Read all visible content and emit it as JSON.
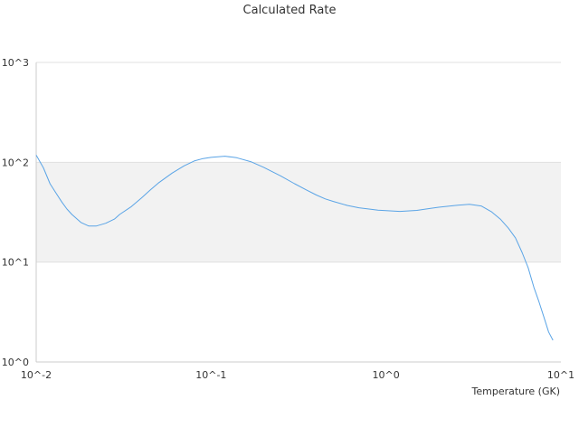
{
  "chart_data": {
    "type": "line",
    "title": "Calculated Rate",
    "xlabel": "Temperature (GK)",
    "ylabel": "",
    "xscale": "log",
    "yscale": "log",
    "xlim": [
      0.01,
      10
    ],
    "ylim": [
      1,
      1000
    ],
    "x_ticks": [
      {
        "value": 0.01,
        "label": "10^-2"
      },
      {
        "value": 0.1,
        "label": "10^-1"
      },
      {
        "value": 1,
        "label": "10^0"
      },
      {
        "value": 10,
        "label": "10^1"
      }
    ],
    "y_ticks": [
      {
        "value": 1,
        "label": "10^0"
      },
      {
        "value": 10,
        "label": "10^1"
      },
      {
        "value": 100,
        "label": "10^2"
      },
      {
        "value": 1000,
        "label": "10^3"
      }
    ],
    "grid": true,
    "legend": "none",
    "shaded_band": [
      10,
      100
    ],
    "colors": {
      "line": "#5aa4e6",
      "band": "#f2f2f2",
      "grid": "#e0e0e0",
      "axis": "#cccccc"
    },
    "series": [
      {
        "x": [
          0.01,
          0.011,
          0.012,
          0.013,
          0.014,
          0.015,
          0.016,
          0.018,
          0.02,
          0.022,
          0.025,
          0.028,
          0.03,
          0.035,
          0.04,
          0.045,
          0.05,
          0.06,
          0.07,
          0.08,
          0.09,
          0.1,
          0.12,
          0.14,
          0.17,
          0.2,
          0.25,
          0.3,
          0.35,
          0.4,
          0.45,
          0.5,
          0.6,
          0.7,
          0.8,
          0.9,
          1.0,
          1.2,
          1.5,
          1.8,
          2.0,
          2.5,
          3.0,
          3.5,
          4.0,
          4.5,
          5.0,
          5.5,
          6.0,
          6.5,
          7.0,
          7.5,
          8.0,
          8.5,
          9.0
        ],
        "y": [
          118,
          88,
          61,
          49,
          40,
          34,
          30,
          25,
          23,
          23,
          24.5,
          27,
          30,
          36,
          44,
          53,
          62,
          78,
          92,
          103,
          109,
          112,
          115,
          111,
          101,
          89,
          73,
          61,
          53,
          47,
          43,
          40.5,
          37,
          35,
          34,
          33.2,
          32.8,
          32.2,
          33,
          34.5,
          35.5,
          37,
          38,
          36.5,
          32,
          27,
          22,
          17.5,
          12.5,
          8.8,
          5.6,
          4.0,
          2.8,
          2.0,
          1.65
        ]
      }
    ]
  }
}
